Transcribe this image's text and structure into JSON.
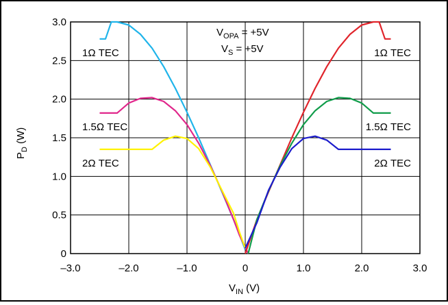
{
  "chart_data": {
    "type": "line",
    "xlabel": {
      "main": "V",
      "sub": "IN",
      "unit": " (V)"
    },
    "ylabel": {
      "main": "P",
      "sub": "D",
      "unit": " (W)"
    },
    "xlim": [
      -3.0,
      3.0
    ],
    "ylim": [
      0,
      3.0
    ],
    "x_ticks": [
      "–3.0",
      "–2.0",
      "–1.0",
      "0",
      "1.0",
      "2.0",
      "3.0"
    ],
    "y_ticks": [
      "0",
      "0.5",
      "1.0",
      "1.5",
      "2.0",
      "2.5",
      "3.0"
    ],
    "grid": true,
    "annotation": {
      "line1": {
        "main": "V",
        "sub": "OPA",
        "rest": " = +5V"
      },
      "line2": {
        "main": "V",
        "sub": "S",
        "rest": " = +5V"
      }
    },
    "series": [
      {
        "name": "1Ω TEC",
        "side": "left",
        "color": "#1fb4ea",
        "points": [
          [
            -2.5,
            2.78
          ],
          [
            -2.4,
            2.78
          ],
          [
            -2.3,
            3.0
          ],
          [
            -2.2,
            3.0
          ],
          [
            -2.0,
            2.96
          ],
          [
            -1.8,
            2.84
          ],
          [
            -1.6,
            2.66
          ],
          [
            -1.4,
            2.42
          ],
          [
            -1.2,
            2.14
          ],
          [
            -1.0,
            1.83
          ],
          [
            -0.8,
            1.5
          ],
          [
            -0.6,
            1.15
          ],
          [
            -0.4,
            0.8
          ],
          [
            -0.2,
            0.44
          ],
          [
            -0.1,
            0.25
          ],
          [
            0.0,
            0.05
          ]
        ]
      },
      {
        "name": "1.5Ω TEC",
        "side": "left",
        "color": "#e0278b",
        "points": [
          [
            -2.5,
            1.82
          ],
          [
            -2.2,
            1.82
          ],
          [
            -2.0,
            1.95
          ],
          [
            -1.8,
            2.01
          ],
          [
            -1.6,
            2.02
          ],
          [
            -1.4,
            1.97
          ],
          [
            -1.2,
            1.85
          ],
          [
            -1.0,
            1.67
          ],
          [
            -0.8,
            1.43
          ],
          [
            -0.6,
            1.14
          ],
          [
            -0.4,
            0.81
          ],
          [
            -0.2,
            0.44
          ],
          [
            -0.1,
            0.24
          ],
          [
            0.05,
            0.0
          ]
        ]
      },
      {
        "name": "2Ω TEC",
        "side": "left",
        "color": "#fff200",
        "points": [
          [
            -2.5,
            1.35
          ],
          [
            -1.6,
            1.35
          ],
          [
            -1.4,
            1.47
          ],
          [
            -1.2,
            1.52
          ],
          [
            -1.0,
            1.49
          ],
          [
            -0.8,
            1.36
          ],
          [
            -0.6,
            1.12
          ],
          [
            -0.4,
            0.82
          ],
          [
            -0.2,
            0.52
          ],
          [
            -0.1,
            0.28
          ],
          [
            0.0,
            0.07
          ]
        ]
      },
      {
        "name": "1Ω TEC",
        "side": "right",
        "color": "#e0242b",
        "points": [
          [
            0.0,
            0.0
          ],
          [
            0.2,
            0.44
          ],
          [
            0.4,
            0.8
          ],
          [
            0.6,
            1.15
          ],
          [
            0.8,
            1.5
          ],
          [
            1.0,
            1.83
          ],
          [
            1.2,
            2.14
          ],
          [
            1.4,
            2.42
          ],
          [
            1.6,
            2.66
          ],
          [
            1.8,
            2.84
          ],
          [
            2.0,
            2.96
          ],
          [
            2.2,
            3.0
          ],
          [
            2.3,
            3.0
          ],
          [
            2.4,
            2.78
          ],
          [
            2.5,
            2.78
          ]
        ]
      },
      {
        "name": "1.5Ω TEC",
        "side": "right",
        "color": "#109c4a",
        "points": [
          [
            0.05,
            0.0
          ],
          [
            0.2,
            0.44
          ],
          [
            0.4,
            0.81
          ],
          [
            0.6,
            1.14
          ],
          [
            0.8,
            1.43
          ],
          [
            1.0,
            1.67
          ],
          [
            1.2,
            1.85
          ],
          [
            1.4,
            1.97
          ],
          [
            1.6,
            2.02
          ],
          [
            1.8,
            2.01
          ],
          [
            2.0,
            1.95
          ],
          [
            2.2,
            1.82
          ],
          [
            2.5,
            1.82
          ]
        ]
      },
      {
        "name": "2Ω TEC",
        "side": "right",
        "color": "#1c1ccc",
        "points": [
          [
            0.0,
            0.07
          ],
          [
            0.2,
            0.4
          ],
          [
            0.4,
            0.82
          ],
          [
            0.6,
            1.12
          ],
          [
            0.8,
            1.36
          ],
          [
            1.0,
            1.49
          ],
          [
            1.2,
            1.52
          ],
          [
            1.4,
            1.47
          ],
          [
            1.6,
            1.35
          ],
          [
            2.5,
            1.35
          ]
        ]
      }
    ]
  }
}
